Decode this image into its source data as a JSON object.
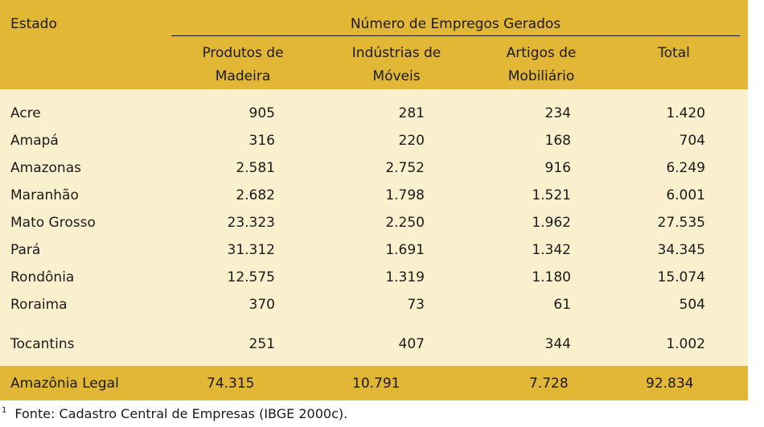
{
  "header": {
    "estado": "Estado",
    "group": "Número de Empregos Gerados",
    "cols": [
      {
        "line1": "Produtos de",
        "line2": "Madeira"
      },
      {
        "line1": "Indústrias de",
        "line2": "Móveis"
      },
      {
        "line1": "Artigos de",
        "line2": "Mobiliário"
      },
      {
        "line1": "Total",
        "line2": ""
      }
    ]
  },
  "rows": [
    {
      "estado": "Acre",
      "v1": "905",
      "v2": "281",
      "v3": "234",
      "total": "1.420"
    },
    {
      "estado": "Amapá",
      "v1": "316",
      "v2": "220",
      "v3": "168",
      "total": "704"
    },
    {
      "estado": "Amazonas",
      "v1": "2.581",
      "v2": "2.752",
      "v3": "916",
      "total": "6.249"
    },
    {
      "estado": "Maranhão",
      "v1": "2.682",
      "v2": "1.798",
      "v3": "1.521",
      "total": "6.001"
    },
    {
      "estado": "Mato Grosso",
      "v1": "23.323",
      "v2": "2.250",
      "v3": "1.962",
      "total": "27.535"
    },
    {
      "estado": "Pará",
      "v1": "31.312",
      "v2": "1.691",
      "v3": "1.342",
      "total": "34.345"
    },
    {
      "estado": "Rondônia",
      "v1": "12.575",
      "v2": "1.319",
      "v3": "1.180",
      "total": "15.074"
    },
    {
      "estado": "Roraima",
      "v1": "370",
      "v2": "73",
      "v3": "61",
      "total": "504"
    },
    {
      "estado": "Tocantins",
      "v1": "251",
      "v2": "407",
      "v3": "344",
      "total": "1.002"
    }
  ],
  "footer": {
    "estado": "Amazônia Legal",
    "v1": "74.315",
    "v2": "10.791",
    "v3": "7.728",
    "total": "92.834"
  },
  "note": {
    "mark": "1",
    "text": "Fonte: Cadastro Central de Empresas (IBGE 2000c)."
  },
  "colors": {
    "header_bg": "#e2b735",
    "body_bg": "#fbf0cd",
    "text": "#1a1a1a"
  }
}
